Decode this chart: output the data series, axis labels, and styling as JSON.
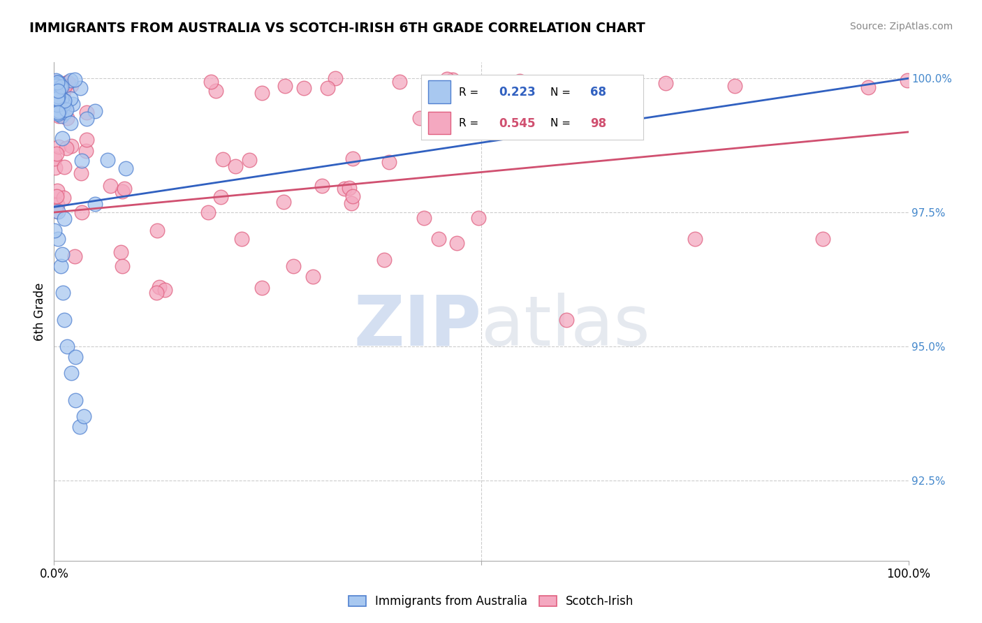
{
  "title": "IMMIGRANTS FROM AUSTRALIA VS SCOTCH-IRISH 6TH GRADE CORRELATION CHART",
  "source": "Source: ZipAtlas.com",
  "ylabel": "6th Grade",
  "legend_blue_label": "Immigrants from Australia",
  "legend_pink_label": "Scotch-Irish",
  "R_blue": "0.223",
  "N_blue": "68",
  "R_pink": "0.545",
  "N_pink": "98",
  "blue_color": "#A8C8F0",
  "pink_color": "#F4A8C0",
  "blue_edge_color": "#5080D0",
  "pink_edge_color": "#E06080",
  "blue_line_color": "#3060C0",
  "pink_line_color": "#D05070",
  "watermark_color": "#C8D8F0",
  "grid_color": "#CCCCCC",
  "right_tick_color": "#4488CC",
  "ylim_low": 0.91,
  "ylim_high": 1.003,
  "y_ticks": [
    0.925,
    0.95,
    0.975,
    1.0
  ],
  "y_tick_labels": [
    "92.5%",
    "95.0%",
    "97.5%",
    "100.0%"
  ]
}
